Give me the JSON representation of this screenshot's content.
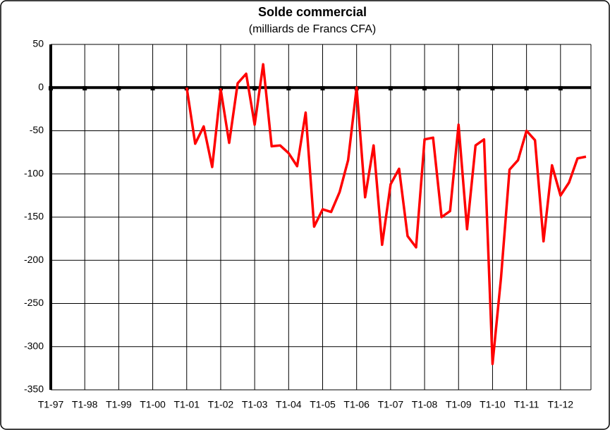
{
  "chart_data": {
    "type": "line",
    "title": "Solde commercial",
    "subtitle": "(milliards de Francs CFA)",
    "categories": [
      "T1-97",
      null,
      null,
      null,
      "T1-98",
      null,
      null,
      null,
      "T1-99",
      null,
      null,
      null,
      "T1-00",
      null,
      null,
      null,
      "T1-01",
      null,
      null,
      null,
      "T1-02",
      null,
      null,
      null,
      "T1-03",
      null,
      null,
      null,
      "T1-04",
      null,
      null,
      null,
      "T1-05",
      null,
      null,
      null,
      "T1-06",
      null,
      null,
      null,
      "T1-07",
      null,
      null,
      null,
      "T1-08",
      null,
      null,
      null,
      "T1-09",
      null,
      null,
      null,
      "T1-10",
      null,
      null,
      null,
      "T1-11",
      null,
      null,
      null,
      "T1-12",
      null,
      null,
      null
    ],
    "series": [
      {
        "name": "Solde commercial",
        "color": "#ff0000",
        "values": [
          null,
          null,
          null,
          null,
          null,
          null,
          null,
          null,
          null,
          null,
          null,
          null,
          null,
          null,
          null,
          null,
          0,
          -65,
          -45,
          -92,
          -2,
          -64,
          5,
          16,
          -43,
          27,
          -68,
          -67,
          -76,
          -91,
          -29,
          -161,
          -141,
          -144,
          -121,
          -84,
          0,
          -127,
          -67,
          -182,
          -112,
          -94,
          -172,
          -185,
          -60,
          -58,
          -150,
          -143,
          -43,
          -164,
          -67,
          -60,
          -320,
          -220,
          -95,
          -84,
          -50,
          -61,
          -178,
          -90,
          -125,
          -110,
          -82,
          -80
        ]
      }
    ],
    "ylim": [
      -350,
      50
    ],
    "yticks": [
      -350,
      -300,
      -250,
      -200,
      -150,
      -100,
      -50,
      0,
      50
    ],
    "grid": true
  }
}
